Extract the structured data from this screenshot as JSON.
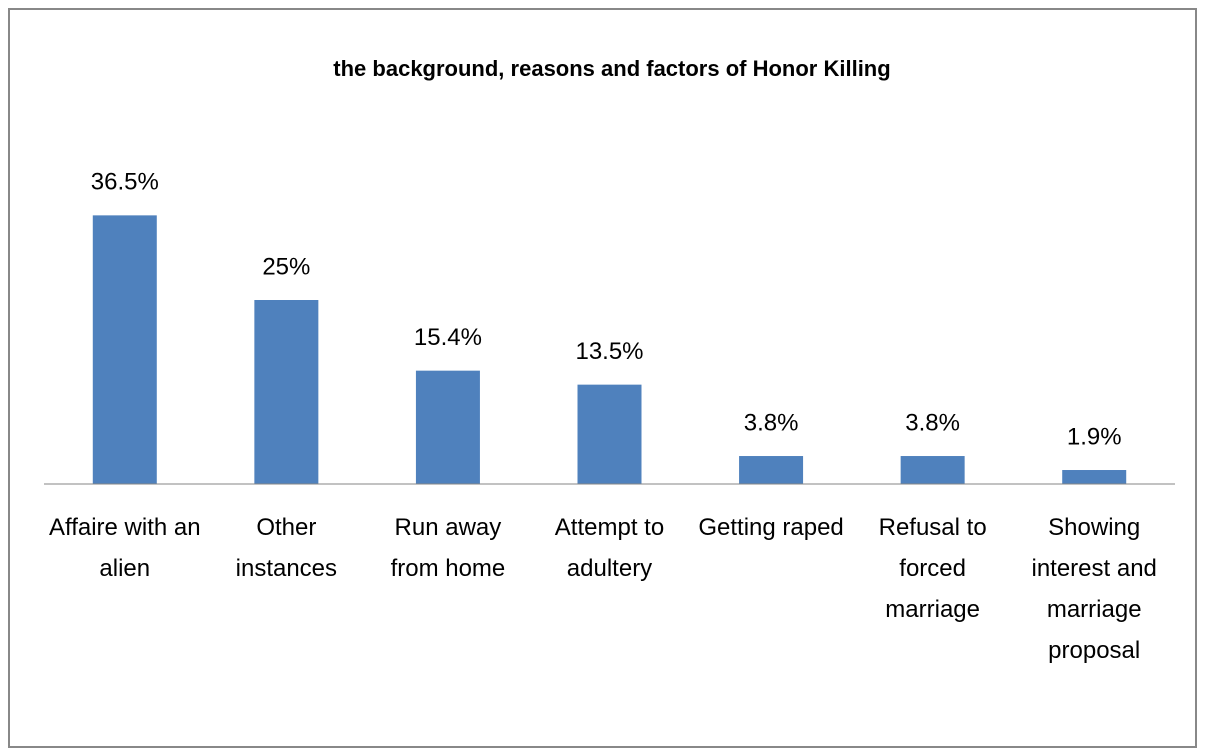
{
  "chart_data": {
    "type": "bar",
    "title": "the background, reasons and factors of Honor Killing",
    "categories": [
      "Affaire with an alien",
      "Other instances",
      "Run away from home",
      "Attempt to adultery",
      "Getting raped",
      "Refusal to forced marriage",
      "Showing interest and marriage proposal"
    ],
    "values": [
      36.5,
      25,
      15.4,
      13.5,
      3.8,
      3.8,
      1.9
    ],
    "value_labels": [
      "36.5%",
      "25%",
      "15.4%",
      "13.5%",
      "3.8%",
      "3.8%",
      "1.9%"
    ],
    "color": "#4f81bd",
    "ylim": [
      0,
      50
    ]
  }
}
